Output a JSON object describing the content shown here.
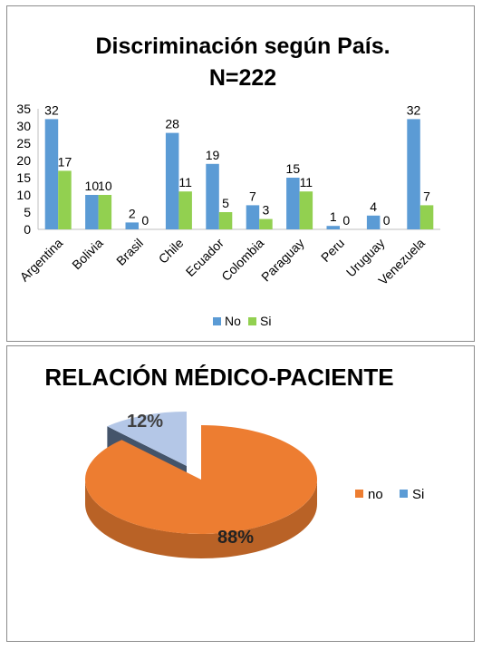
{
  "chart_data": [
    {
      "type": "bar",
      "title_line1": "Discriminación según País.",
      "title_line2": "N=222",
      "categories": [
        "Argentina",
        "Bolivia",
        "Brasil",
        "Chile",
        "Ecuador",
        "Colombia",
        "Paraguay",
        "Peru",
        "Uruguay",
        "Venezuela"
      ],
      "series": [
        {
          "name": "No",
          "values": [
            32,
            10,
            2,
            28,
            19,
            7,
            15,
            1,
            4,
            32
          ],
          "color": "#5b9bd5"
        },
        {
          "name": "Si",
          "values": [
            17,
            10,
            0,
            11,
            5,
            3,
            11,
            0,
            0,
            7
          ],
          "color": "#92d050"
        }
      ],
      "ylim": [
        0,
        35
      ],
      "yticks": [
        "0",
        "5",
        "10",
        "15",
        "20",
        "25",
        "30",
        "35"
      ],
      "grid": false,
      "legend_position": "bottom"
    },
    {
      "type": "pie",
      "title": "RELACIÓN MÉDICO-PACIENTE",
      "slices": [
        {
          "label": "no",
          "value": 88,
          "display": "88%",
          "color": "#ed7d31"
        },
        {
          "label": "Si",
          "value": 12,
          "display": "12%",
          "color": "#b4c7e7"
        }
      ],
      "exploded": "Si",
      "style": "3d",
      "legend_position": "right"
    }
  ]
}
